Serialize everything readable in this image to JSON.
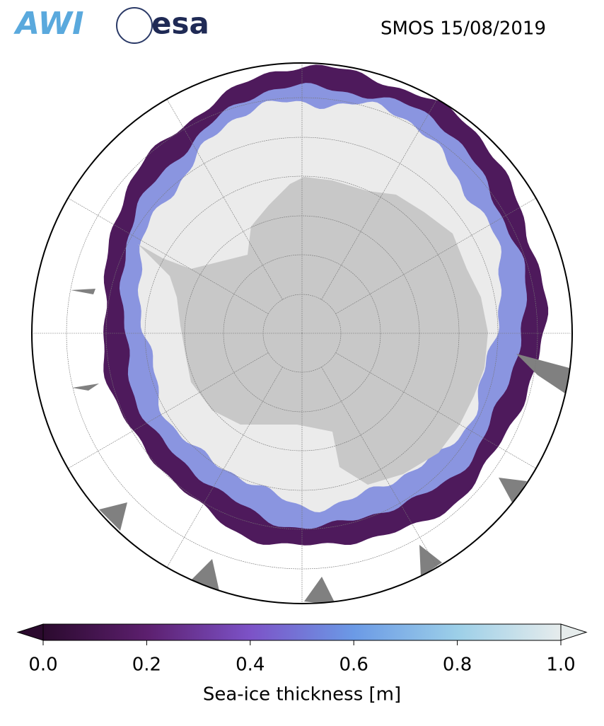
{
  "title": "SMOS 15/08/2019",
  "logos": [
    "AWI",
    "esa"
  ],
  "colorbar": {
    "label": "Sea-ice thickness [m]",
    "lim": [
      0,
      1
    ],
    "ticks": [
      {
        "value": 0,
        "label": "0.0"
      },
      {
        "value": 0.2,
        "label": "0.2"
      },
      {
        "value": 0.4,
        "label": "0.4"
      },
      {
        "value": 0.6,
        "label": "0.6"
      },
      {
        "value": 0.8,
        "label": "0.8"
      },
      {
        "value": 1,
        "label": "1.0"
      }
    ],
    "colormap": [
      "#2b0a2e",
      "#5c1f6e",
      "#7c52c7",
      "#6b9ae6",
      "#9ccfe8",
      "#e6ecec"
    ],
    "extend": "both"
  }
}
